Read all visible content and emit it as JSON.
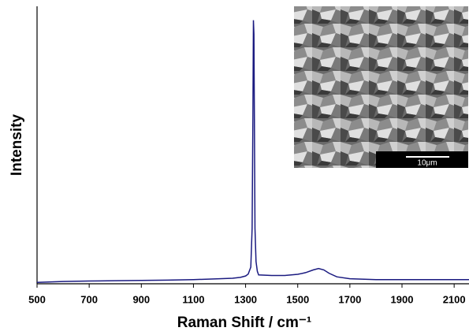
{
  "chart_data": {
    "type": "line",
    "x_label": "Raman Shift / cm⁻¹",
    "y_label": "Intensity",
    "annotations": [
      "10μm"
    ],
    "x": [
      500,
      600,
      700,
      800,
      900,
      1000,
      1100,
      1200,
      1250,
      1280,
      1300,
      1310,
      1320,
      1325,
      1328,
      1330,
      1332,
      1334,
      1336,
      1340,
      1345,
      1350,
      1400,
      1450,
      1500,
      1530,
      1560,
      1580,
      1600,
      1620,
      1650,
      1700,
      1800,
      1900,
      2000,
      2100,
      2160
    ],
    "series": [
      {
        "color": "#1a1a80",
        "values": [
          0.5,
          0.8,
          1.0,
          1.1,
          1.2,
          1.3,
          1.5,
          1.8,
          2.0,
          2.3,
          2.8,
          3.5,
          6,
          20,
          60,
          95,
          90,
          55,
          20,
          8,
          4.5,
          3.2,
          3.0,
          3.0,
          3.4,
          4.0,
          5.0,
          5.5,
          5.0,
          3.8,
          2.5,
          1.8,
          1.5,
          1.5,
          1.5,
          1.5,
          1.5
        ]
      }
    ],
    "xlim": [
      500,
      2160
    ],
    "xticks": [
      500,
      700,
      900,
      1100,
      1300,
      1500,
      1700,
      1900,
      2100
    ],
    "ylim": [
      0,
      100
    ]
  }
}
